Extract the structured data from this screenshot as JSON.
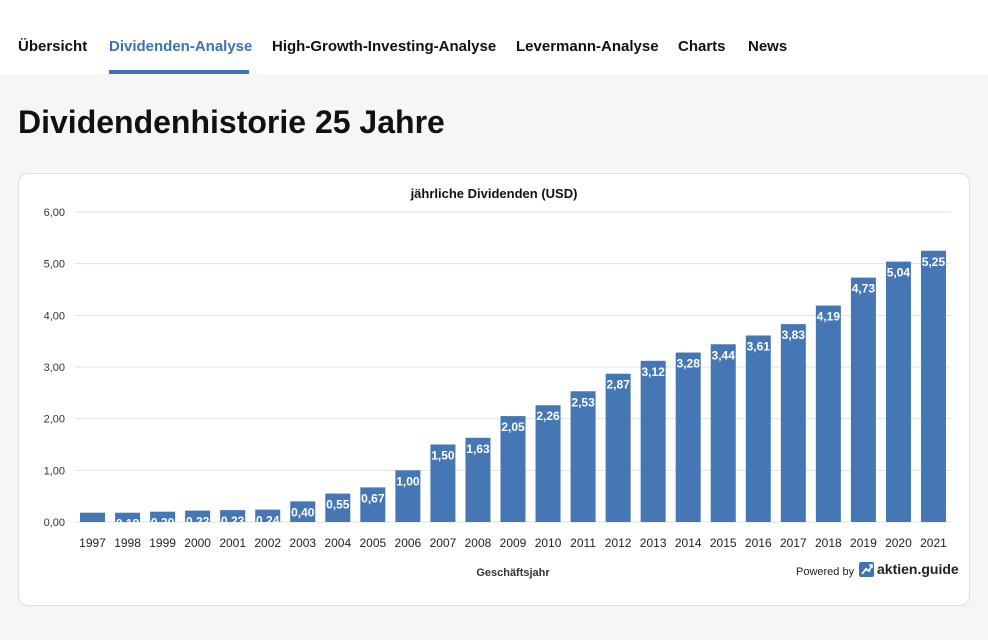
{
  "nav": {
    "tabs": [
      {
        "label": "Übersicht"
      },
      {
        "label": "Dividenden-Analyse",
        "active": true
      },
      {
        "label": "High-Growth-Investing-Analyse"
      },
      {
        "label": "Levermann-Analyse"
      },
      {
        "label": "Charts"
      },
      {
        "label": "News"
      }
    ]
  },
  "page": {
    "title": "Dividendenhistorie 25 Jahre"
  },
  "branding": {
    "powered_by": "Powered by",
    "brand_name": "aktien.guide",
    "logo_icon": "chart-trend-up-icon"
  },
  "colors": {
    "accent": "#3f72b0",
    "bar": "#4477b3",
    "grid": "#e2e2e2"
  },
  "chart_data": {
    "type": "bar",
    "title": "jährliche Dividenden (USD)",
    "xlabel": "Geschäftsjahr",
    "ylabel": "",
    "ylim": [
      0,
      6
    ],
    "yticks": [
      "0,00",
      "1,00",
      "2,00",
      "3,00",
      "4,00",
      "5,00",
      "6,00"
    ],
    "grid": true,
    "categories": [
      "1997",
      "1998",
      "1999",
      "2000",
      "2001",
      "2002",
      "2003",
      "2004",
      "2005",
      "2006",
      "2007",
      "2008",
      "2009",
      "2010",
      "2011",
      "2012",
      "2013",
      "2014",
      "2015",
      "2016",
      "2017",
      "2018",
      "2019",
      "2020",
      "2021"
    ],
    "values": [
      0.18,
      0.18,
      0.2,
      0.22,
      0.23,
      0.24,
      0.4,
      0.55,
      0.67,
      1.0,
      1.5,
      1.63,
      2.05,
      2.26,
      2.53,
      2.87,
      3.12,
      3.28,
      3.44,
      3.61,
      3.83,
      4.19,
      4.73,
      5.04,
      5.25
    ],
    "labels": [
      "",
      "0,18",
      "0,20",
      "0,22",
      "0,23",
      "0,24",
      "0,40",
      "0,55",
      "0,67",
      "1,00",
      "1,50",
      "1,63",
      "2,05",
      "2,26",
      "2,53",
      "2,87",
      "3,12",
      "3,28",
      "3,44",
      "3,61",
      "3,83",
      "4,19",
      "4,73",
      "5,04",
      "5,25"
    ]
  }
}
